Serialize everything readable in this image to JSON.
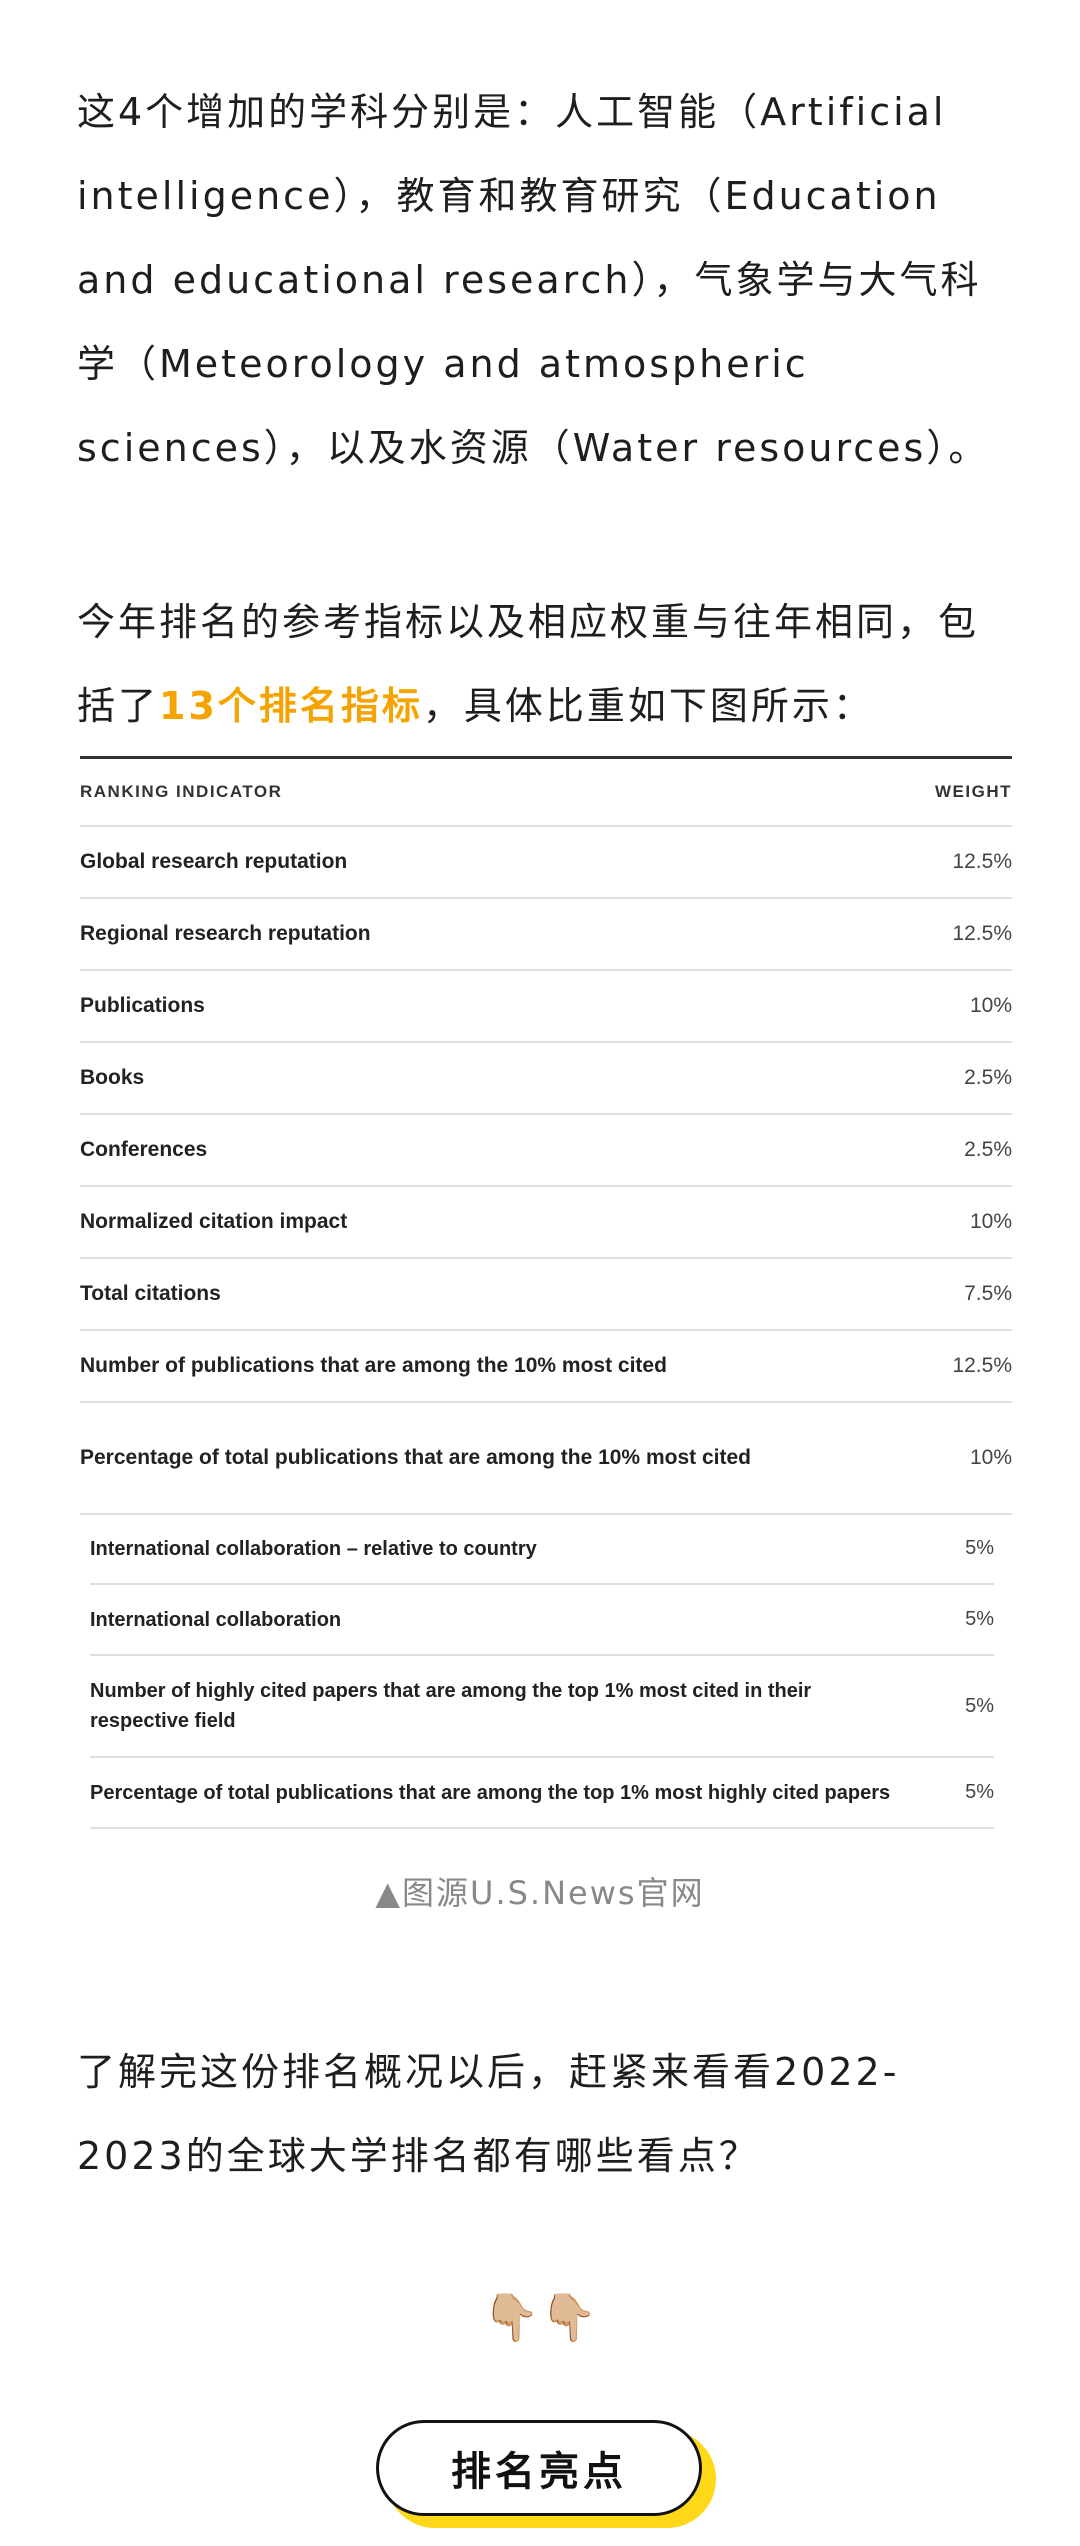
{
  "intro": {
    "p1": "这4个增加的学科分别是：人工智能（Artificial intelligence），教育和教育研究（Education and educational research），气象学与大气科学（Meteorology and atmospheric sciences），以及水资源（Water resources）。",
    "p2_before": "今年排名的参考指标以及相应权重与往年相同，包括了",
    "p2_highlight": "13个排名指标",
    "p2_after": "，具体比重如下图所示："
  },
  "table": {
    "header_indicator": "RANKING INDICATOR",
    "header_weight": "WEIGHT",
    "rows": [
      {
        "label": "Global research reputation",
        "weight": "12.5%"
      },
      {
        "label": "Regional research reputation",
        "weight": "12.5%"
      },
      {
        "label": "Publications",
        "weight": "10%"
      },
      {
        "label": "Books",
        "weight": "2.5%"
      },
      {
        "label": "Conferences",
        "weight": "2.5%"
      },
      {
        "label": "Normalized citation impact",
        "weight": "10%"
      },
      {
        "label": "Total citations",
        "weight": "7.5%"
      },
      {
        "label": "Number of publications that are among the 10% most cited",
        "weight": "12.5%"
      },
      {
        "label": "Percentage of total publications that are among the 10% most cited",
        "weight": "10%"
      }
    ],
    "rows2": [
      {
        "label": "International collaboration – relative to country",
        "weight": "5%"
      },
      {
        "label": "International collaboration",
        "weight": "5%"
      },
      {
        "label": "Number of highly cited papers that are among the top 1% most cited in their respective field",
        "weight": "5%"
      },
      {
        "label": "Percentage of total publications that are among the top 1% most highly cited papers",
        "weight": "5%"
      }
    ]
  },
  "caption": "▲图源U.S.News官网",
  "outro": "了解完这份排名概况以后，赶紧来看看2022-2023的全球大学排名都有哪些看点？",
  "emojis": "👇🏼👇🏼",
  "button_label": "排名亮点"
}
